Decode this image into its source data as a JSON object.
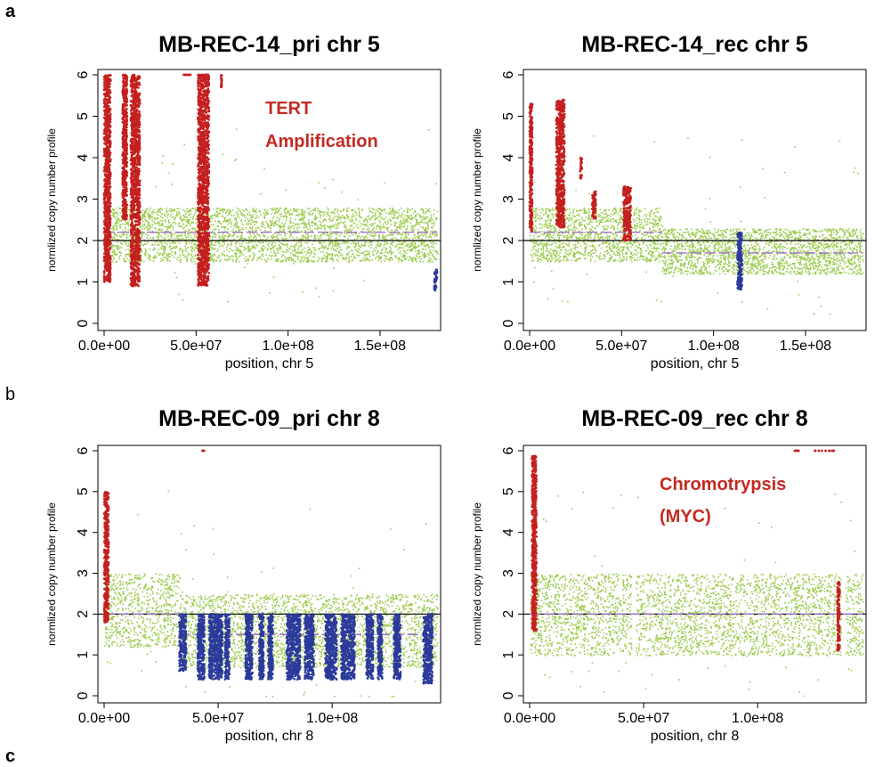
{
  "panel_labels": {
    "a": "a",
    "b": "b",
    "c": "c"
  },
  "colors": {
    "normal": "#9ccc50",
    "gain": "#c41f1f",
    "loss": "#2b3a9a",
    "segment": "#a070c8",
    "baseline": "#000000"
  },
  "chart_data": [
    {
      "type": "scatter",
      "title": "MB-REC-14_pri chr 5",
      "xlabel": "position, chr 5",
      "ylabel": "normlized copy number profile",
      "xlim": [
        0,
        181000000
      ],
      "ylim": [
        0,
        6
      ],
      "xticks": [
        {
          "value": 0,
          "label": "0.0e+00"
        },
        {
          "value": 50000000,
          "label": "5.0e+07"
        },
        {
          "value": 100000000,
          "label": "1.0e+08"
        },
        {
          "value": 150000000,
          "label": "1.5e+08"
        }
      ],
      "yticks": [
        0,
        1,
        2,
        3,
        4,
        5,
        6
      ],
      "baseline": 2,
      "normal_band": [
        1.5,
        2.8
      ],
      "segment_level": 2.2,
      "annotations": [
        "TERT",
        "Amplification"
      ],
      "gain_clusters": [
        {
          "x": [
            0,
            3500000
          ],
          "y": [
            1.0,
            6.0
          ]
        },
        {
          "x": [
            10000000,
            12500000
          ],
          "y": [
            2.5,
            6.0
          ]
        },
        {
          "x": [
            14500000,
            19500000
          ],
          "y": [
            0.9,
            6.0
          ]
        },
        {
          "x": [
            51000000,
            57000000
          ],
          "y": [
            0.9,
            6.0
          ]
        },
        {
          "x": [
            53000000,
            57000000
          ],
          "y": [
            6.0,
            6.0
          ]
        },
        {
          "x": [
            43000000,
            47000000
          ],
          "y": [
            6.0,
            6.0
          ]
        },
        {
          "x": [
            63500000,
            64000000
          ],
          "y": [
            5.7,
            6.0
          ]
        }
      ],
      "loss_clusters": [
        {
          "x": [
            179500000,
            181000000
          ],
          "y": [
            0.8,
            1.3
          ]
        }
      ]
    },
    {
      "type": "scatter",
      "title": "MB-REC-14_rec chr 5",
      "xlabel": "position, chr 5",
      "ylabel": "normlized copy number profile",
      "xlim": [
        0,
        181000000
      ],
      "ylim": [
        0,
        6
      ],
      "xticks": [
        {
          "value": 0,
          "label": "0.0e+00"
        },
        {
          "value": 50000000,
          "label": "5.0e+07"
        },
        {
          "value": 100000000,
          "label": "1.0e+08"
        },
        {
          "value": 150000000,
          "label": "1.5e+08"
        }
      ],
      "yticks": [
        0,
        1,
        2,
        3,
        4,
        5,
        6
      ],
      "baseline": 2,
      "normal_band_segments": [
        {
          "x": [
            0,
            72000000
          ],
          "band": [
            1.5,
            2.8
          ],
          "level": 2.2
        },
        {
          "x": [
            72000000,
            181000000
          ],
          "band": [
            1.2,
            2.3
          ],
          "level": 1.7
        }
      ],
      "gain_clusters": [
        {
          "x": [
            0,
            1500000
          ],
          "y": [
            2.2,
            5.3
          ]
        },
        {
          "x": [
            14500000,
            19000000
          ],
          "y": [
            2.3,
            5.4
          ]
        },
        {
          "x": [
            27500000,
            28500000
          ],
          "y": [
            3.5,
            4.0
          ]
        },
        {
          "x": [
            34000000,
            36000000
          ],
          "y": [
            2.5,
            3.2
          ]
        },
        {
          "x": [
            51000000,
            55000000
          ],
          "y": [
            2.0,
            3.3
          ]
        }
      ],
      "loss_clusters": [
        {
          "x": [
            113000000,
            115500000
          ],
          "y": [
            0.8,
            2.2
          ]
        }
      ]
    },
    {
      "type": "scatter",
      "title": "MB-REC-09_pri chr 8",
      "xlabel": "position, chr 8",
      "ylabel": "normlized copy number profile",
      "xlim": [
        0,
        146000000
      ],
      "ylim": [
        0,
        6
      ],
      "xticks": [
        {
          "value": 0,
          "label": "0.0e+00"
        },
        {
          "value": 50000000,
          "label": "5.0e+07"
        },
        {
          "value": 100000000,
          "label": "1.0e+08"
        }
      ],
      "yticks": [
        0,
        1,
        2,
        3,
        4,
        5,
        6
      ],
      "baseline": 2,
      "normal_band_segments": [
        {
          "x": [
            0,
            33000000
          ],
          "band": [
            1.2,
            3.0
          ],
          "level": 2.0
        },
        {
          "x": [
            33000000,
            146000000
          ],
          "band": [
            0.7,
            2.5
          ],
          "level": 1.5
        }
      ],
      "gain_clusters": [
        {
          "x": [
            0,
            2000000
          ],
          "y": [
            1.8,
            5.0
          ]
        },
        {
          "x": [
            43000000,
            44000000
          ],
          "y": [
            6.0,
            6.0
          ]
        }
      ],
      "loss_clusters": [
        {
          "x": [
            33000000,
            36000000
          ],
          "y": [
            0.6,
            2.0
          ]
        },
        {
          "x": [
            41000000,
            44000000
          ],
          "y": [
            0.4,
            2.0
          ]
        },
        {
          "x": [
            46000000,
            52000000
          ],
          "y": [
            0.4,
            2.0
          ]
        },
        {
          "x": [
            53000000,
            55000000
          ],
          "y": [
            0.4,
            2.0
          ]
        },
        {
          "x": [
            62000000,
            65000000
          ],
          "y": [
            0.4,
            2.0
          ]
        },
        {
          "x": [
            68000000,
            70000000
          ],
          "y": [
            0.4,
            2.0
          ]
        },
        {
          "x": [
            72000000,
            74000000
          ],
          "y": [
            0.4,
            2.0
          ]
        },
        {
          "x": [
            80000000,
            86000000
          ],
          "y": [
            0.4,
            2.0
          ]
        },
        {
          "x": [
            88000000,
            92000000
          ],
          "y": [
            0.4,
            2.0
          ]
        },
        {
          "x": [
            97000000,
            102000000
          ],
          "y": [
            0.4,
            2.0
          ]
        },
        {
          "x": [
            104000000,
            110000000
          ],
          "y": [
            0.4,
            2.0
          ]
        },
        {
          "x": [
            115000000,
            118000000
          ],
          "y": [
            0.4,
            2.0
          ]
        },
        {
          "x": [
            120000000,
            122000000
          ],
          "y": [
            0.4,
            2.0
          ]
        },
        {
          "x": [
            127000000,
            130000000
          ],
          "y": [
            0.4,
            2.0
          ]
        },
        {
          "x": [
            140000000,
            144000000
          ],
          "y": [
            0.3,
            2.0
          ]
        }
      ]
    },
    {
      "type": "scatter",
      "title": "MB-REC-09_rec chr 8",
      "xlabel": "position, chr 8",
      "ylabel": "normlized copy number profile",
      "xlim": [
        0,
        146000000
      ],
      "ylim": [
        0,
        6
      ],
      "xticks": [
        {
          "value": 0,
          "label": "0.0e+00"
        },
        {
          "value": 50000000,
          "label": "5.0e+07"
        },
        {
          "value": 100000000,
          "label": "1.0e+08"
        }
      ],
      "yticks": [
        0,
        1,
        2,
        3,
        4,
        5,
        6
      ],
      "baseline": 2,
      "normal_band": [
        1.0,
        3.0
      ],
      "segment_level": 2.0,
      "gaps": [
        [
          44500000,
          46500000
        ],
        [
          136500000,
          138500000
        ]
      ],
      "annotations": [
        "Chromotrypsis",
        "(MYC)"
      ],
      "gain_clusters": [
        {
          "x": [
            1000000,
            3000000
          ],
          "y": [
            1.6,
            5.9
          ]
        },
        {
          "x": [
            116000000,
            118000000
          ],
          "y": [
            6.0,
            6.0
          ]
        },
        {
          "x": [
            124000000,
            134000000
          ],
          "y": [
            6.0,
            6.0
          ]
        },
        {
          "x": [
            135000000,
            136000000
          ],
          "y": [
            1.1,
            2.8
          ]
        }
      ],
      "loss_clusters": []
    }
  ]
}
